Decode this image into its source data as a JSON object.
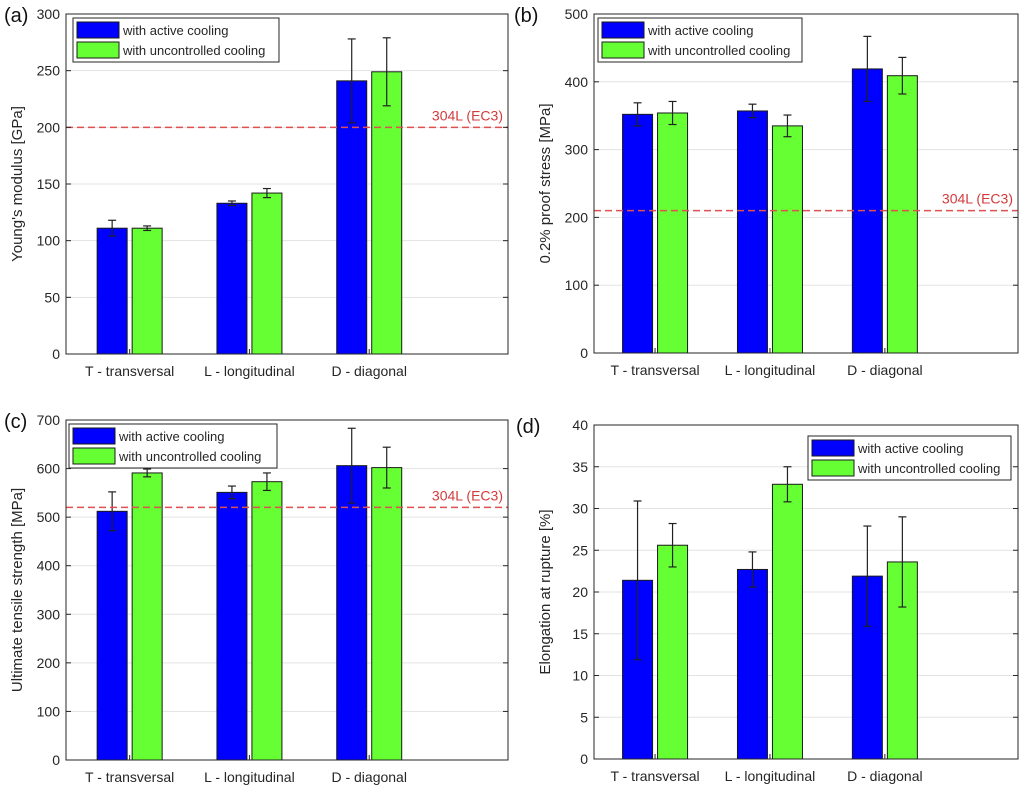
{
  "colors": {
    "active": "#0000ff",
    "uncontrolled": "#66ff33",
    "reference_line": "#e05050",
    "reference_text": "#d33a3a",
    "grid": "#e3e3e3"
  },
  "chart_data": [
    {
      "panel_label": "(a)",
      "type": "bar",
      "categories": [
        "T - transversal",
        "L - longitudinal",
        "D - diagonal"
      ],
      "ylabel": "Young's modulus [GPa]",
      "ylim": [
        0,
        300
      ],
      "yticks": [
        0,
        50,
        100,
        150,
        200,
        250,
        300
      ],
      "grid": true,
      "legend_position": "top-left",
      "series": [
        {
          "name": "with active cooling",
          "values": [
            111,
            133,
            241
          ],
          "errors": [
            7,
            2,
            37
          ]
        },
        {
          "name": "with uncontrolled cooling",
          "values": [
            111,
            142,
            249
          ],
          "errors": [
            2,
            4,
            30
          ]
        }
      ],
      "reference_line": {
        "label": "304L (EC3)",
        "value": 200
      }
    },
    {
      "panel_label": "(b)",
      "type": "bar",
      "categories": [
        "T - transversal",
        "L - longitudinal",
        "D - diagonal"
      ],
      "ylabel": "0.2% proof stress [MPa]",
      "ylim": [
        0,
        500
      ],
      "yticks": [
        0,
        100,
        200,
        300,
        400,
        500
      ],
      "grid": true,
      "legend_position": "top-left",
      "series": [
        {
          "name": "with active cooling",
          "values": [
            352,
            357,
            419
          ],
          "errors": [
            17,
            10,
            48
          ]
        },
        {
          "name": "with uncontrolled cooling",
          "values": [
            354,
            335,
            409
          ],
          "errors": [
            17,
            16,
            27
          ]
        }
      ],
      "reference_line": {
        "label": "304L (EC3)",
        "value": 210
      }
    },
    {
      "panel_label": "(c)",
      "type": "bar",
      "categories": [
        "T - transversal",
        "L - longitudinal",
        "D - diagonal"
      ],
      "ylabel": "Ultimate tensile strength [MPa]",
      "ylim": [
        0,
        700
      ],
      "yticks": [
        0,
        100,
        200,
        300,
        400,
        500,
        600,
        700
      ],
      "grid": true,
      "legend_position": "top-left",
      "series": [
        {
          "name": "with active cooling",
          "values": [
            512,
            551,
            606
          ],
          "errors": [
            40,
            13,
            77
          ]
        },
        {
          "name": "with uncontrolled cooling",
          "values": [
            591,
            573,
            602
          ],
          "errors": [
            8,
            18,
            42
          ]
        }
      ],
      "reference_line": {
        "label": "304L (EC3)",
        "value": 520
      }
    },
    {
      "panel_label": "(d)",
      "type": "bar",
      "categories": [
        "T - transversal",
        "L - longitudinal",
        "D - diagonal"
      ],
      "ylabel": "Elongation at rupture [%]",
      "ylim": [
        0,
        40
      ],
      "yticks": [
        0,
        5,
        10,
        15,
        20,
        25,
        30,
        35,
        40
      ],
      "grid": true,
      "legend_position": "top-right",
      "series": [
        {
          "name": "with active cooling",
          "values": [
            21.4,
            22.7,
            21.9
          ],
          "errors": [
            9.5,
            2.1,
            6.0
          ]
        },
        {
          "name": "with uncontrolled cooling",
          "values": [
            25.6,
            32.9,
            23.6
          ],
          "errors": [
            2.6,
            2.1,
            5.4
          ]
        }
      ],
      "reference_line": null
    }
  ]
}
